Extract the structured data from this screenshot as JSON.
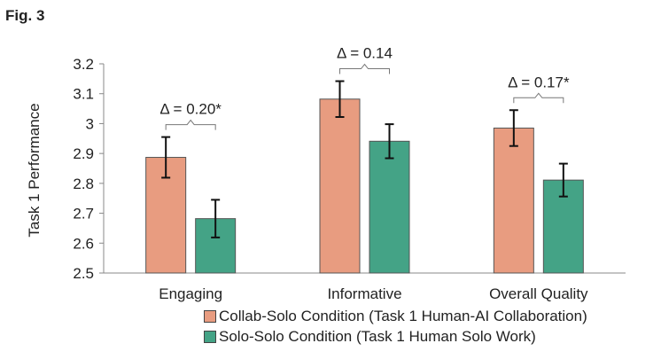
{
  "figure_label": "Fig. 3",
  "chart_data": {
    "type": "bar",
    "title": "",
    "xlabel": "",
    "ylabel": "Task 1 Performance",
    "ylim": [
      2.5,
      3.2
    ],
    "yticks": [
      2.5,
      2.6,
      2.7,
      2.8,
      2.9,
      3,
      3.1,
      3.2
    ],
    "ytick_labels": [
      "2.5",
      "2.6",
      "2.7",
      "2.8",
      "2.9",
      "3",
      "3.1",
      "3.2"
    ],
    "categories": [
      "Engaging",
      "Informative",
      "Overall Quality"
    ],
    "series": [
      {
        "name": "Collab-Solo Condition (Task 1 Human-AI Collaboration)",
        "color": "#E89C80",
        "values": [
          2.887,
          3.082,
          2.985
        ],
        "errors": [
          0.068,
          0.06,
          0.06
        ]
      },
      {
        "name": "Solo-Solo Condition (Task 1 Human Solo Work)",
        "color": "#44A386",
        "values": [
          2.682,
          2.941,
          2.811
        ],
        "errors": [
          0.063,
          0.057,
          0.055
        ]
      }
    ],
    "annotations": [
      "Δ = 0.20*",
      "Δ = 0.14",
      "Δ = 0.17*"
    ],
    "grid": false,
    "legend_position": "bottom"
  }
}
